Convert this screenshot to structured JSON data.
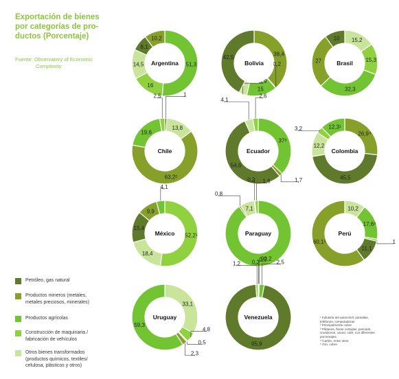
{
  "title": "Exportación de bienes\npor categorías de pro-\nductos (Porcentaje)",
  "source": {
    "line1": "Fuente: Observatory of Economic",
    "line2": "Complexity"
  },
  "colors": {
    "petroleo": "#5f7a2a",
    "mineros": "#86a02a",
    "agricolas": "#72c432",
    "maquinaria": "#8fd13f",
    "otros": "#c9e49b",
    "title": "#8cc43c"
  },
  "legend": [
    {
      "key": "petroleo",
      "label": "Petróleo, gas natural"
    },
    {
      "key": "mineros",
      "label": "Productos mineros (metales,\nmetales preciosos, minerales)"
    },
    {
      "key": "agricolas",
      "label": "Productos agrícolas"
    },
    {
      "key": "maquinaria",
      "label": "Construcción de maquinaria /\nfabricación de vehículos"
    },
    {
      "key": "otros",
      "label": "Otros bienes transformados\n(productos químicos, textiles/\ncelulosa, plásticos y otros)"
    }
  ],
  "notes": [
    "¹ Industria del automóvil, pantallas,\n  teléfonos, computadoras",
    "² Principalmente cobre",
    "³ Plátanos, flores cortadas, pescado,\n  crustáceos, cacao, café, con diferentes\n  porcentajes",
    "⁴ Cartón, entre otros",
    "⁵ Oro, cobre"
  ],
  "chart_data": [
    {
      "type": "pie",
      "donut": true,
      "country": "Argentina",
      "slices": [
        {
          "category": "agricolas",
          "label": "51,3",
          "value": 51.3
        },
        {
          "category": "maquinaria",
          "label": "16",
          "value": 16
        },
        {
          "category": "otros",
          "label": "14,5",
          "value": 14.5
        },
        {
          "category": "petroleo",
          "label": "8,1",
          "value": 8.1
        },
        {
          "category": "mineros",
          "label": "10,2",
          "value": 10.2
        }
      ]
    },
    {
      "type": "pie",
      "donut": true,
      "country": "Bolivia",
      "slices": [
        {
          "category": "mineros",
          "label": "38,4",
          "value": 38.4
        },
        {
          "category": "maquinaria",
          "label": "0,2",
          "value": 0.2
        },
        {
          "category": "agricolas",
          "label": "15",
          "value": 15
        },
        {
          "category": "otros",
          "label": "3,9",
          "value": 3.9
        },
        {
          "category": "petroleo",
          "label": "42,5",
          "value": 42.5
        }
      ]
    },
    {
      "type": "pie",
      "donut": true,
      "country": "Brasil",
      "slices": [
        {
          "category": "otros",
          "label": "15,2",
          "value": 15.2
        },
        {
          "category": "maquinaria",
          "label": "15,3",
          "value": 15.3
        },
        {
          "category": "agricolas",
          "label": "32,3",
          "value": 32.3
        },
        {
          "category": "mineros",
          "label": "27",
          "value": 27
        },
        {
          "category": "petroleo",
          "label": "10",
          "value": 10
        }
      ]
    },
    {
      "type": "pie",
      "donut": true,
      "country": "Chile",
      "slices": [
        {
          "category": "petroleo",
          "label": "1",
          "value": 1
        },
        {
          "category": "otros",
          "label": "13,8",
          "value": 13.8
        },
        {
          "category": "mineros",
          "label": "63,2²",
          "value": 63.2
        },
        {
          "category": "agricolas",
          "label": "19,6",
          "value": 19.6
        },
        {
          "category": "maquinaria",
          "label": "2,5",
          "value": 2.5
        }
      ]
    },
    {
      "type": "pie",
      "donut": true,
      "country": "Ecuador",
      "slices": [
        {
          "category": "agricolas",
          "label": "37³",
          "value": 37
        },
        {
          "category": "mineros",
          "label": "1,7",
          "value": 1.7
        },
        {
          "category": "petroleo",
          "label": "54,6",
          "value": 54.6
        },
        {
          "category": "otros",
          "label": "4,1",
          "value": 4.1
        },
        {
          "category": "maquinaria",
          "label": "2,6",
          "value": 2.6
        }
      ]
    },
    {
      "type": "pie",
      "donut": true,
      "country": "Colombia",
      "slices": [
        {
          "category": "mineros",
          "label": "26,9⁴",
          "value": 26.9
        },
        {
          "category": "petroleo",
          "label": "45,5",
          "value": 45.5
        },
        {
          "category": "otros",
          "label": "12,2",
          "value": 12.2
        },
        {
          "category": "maquinaria",
          "label": "3,2",
          "value": 3.2
        },
        {
          "category": "agricolas",
          "label": "12,3¹",
          "value": 12.3
        }
      ]
    },
    {
      "type": "pie",
      "donut": true,
      "country": "México",
      "slices": [
        {
          "category": "maquinaria",
          "label": "52,2¹",
          "value": 52.2
        },
        {
          "category": "otros",
          "label": "18,4",
          "value": 18.4
        },
        {
          "category": "petroleo",
          "label": "15,4",
          "value": 15.4
        },
        {
          "category": "mineros",
          "label": "9,9",
          "value": 9.9
        },
        {
          "category": "agricolas",
          "label": "4,1",
          "value": 4.1
        }
      ]
    },
    {
      "type": "pie",
      "donut": true,
      "country": "Paraguay",
      "slices": [
        {
          "category": "agricolas",
          "label": "90,2",
          "value": 90.2
        },
        {
          "category": "mineros",
          "label": "0,8",
          "value": 0.8
        },
        {
          "category": "otros",
          "label": "7,1",
          "value": 7.1
        },
        {
          "category": "petroleo",
          "label": "0,3",
          "value": 0.3
        },
        {
          "category": "maquinaria",
          "label": "1,6",
          "value": 1.6
        }
      ]
    },
    {
      "type": "pie",
      "donut": true,
      "country": "Perú",
      "slices": [
        {
          "category": "otros",
          "label": "10,2",
          "value": 10.2
        },
        {
          "category": "agricolas",
          "label": "17,6³",
          "value": 17.6
        },
        {
          "category": "maquinaria",
          "label": "1",
          "value": 1
        },
        {
          "category": "petroleo",
          "label": "11,1",
          "value": 11.1
        },
        {
          "category": "mineros",
          "label": "60,1⁵",
          "value": 60.1
        }
      ]
    },
    {
      "type": "pie",
      "donut": true,
      "country": "Uruguay",
      "slices": [
        {
          "category": "otros",
          "label": "33,1",
          "value": 33.1
        },
        {
          "category": "maquinaria",
          "label": "4,8",
          "value": 4.8
        },
        {
          "category": "petroleo",
          "label": "0,5",
          "value": 0.5
        },
        {
          "category": "mineros",
          "label": "2,3",
          "value": 2.3
        },
        {
          "category": "agricolas",
          "label": "59,3",
          "value": 59.3
        }
      ]
    },
    {
      "type": "pie",
      "donut": true,
      "country": "Venezuela",
      "slices": [
        {
          "category": "mineros",
          "label": "0,3",
          "value": 0.3
        },
        {
          "category": "otros",
          "label": "0,2",
          "value": 0.2
        },
        {
          "category": "agricolas",
          "label": "2,5",
          "value": 2.5
        },
        {
          "category": "petroleo",
          "label": "95,9",
          "value": 95.9
        },
        {
          "category": "maquinaria",
          "label": "1,2",
          "value": 1.2
        }
      ]
    }
  ]
}
